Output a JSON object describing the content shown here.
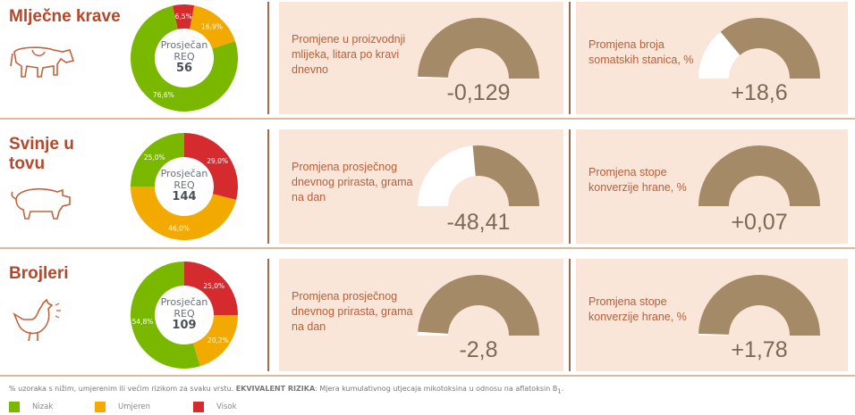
{
  "colors": {
    "nizak": "#7ab800",
    "umjeren": "#f2a900",
    "visok": "#d52b2e",
    "gauge": "#a58a68",
    "panel": "#fae6d8",
    "title": "#b5472a"
  },
  "rows": [
    {
      "name": "Mlječne krave",
      "icon": "cow-icon",
      "center": {
        "line1": "Prosječan",
        "line2": "REQ",
        "value": "56"
      },
      "donut": [
        {
          "level": "visok",
          "pct": 6.5,
          "label": "6,5%"
        },
        {
          "level": "umjeren",
          "pct": 16.9,
          "label": "16,9%"
        },
        {
          "level": "nizak",
          "pct": 76.6,
          "label": "76,6%"
        }
      ],
      "panels": [
        {
          "text": "Promjene u proizvodnji mlijeka, litara po kravi dnevno",
          "value": "-0,129",
          "fill_fraction": 0.99
        },
        {
          "text": "Promjena broja somatskih stanica, %",
          "value": "+18,6",
          "fill_fraction": 0.72
        }
      ]
    },
    {
      "name": "Svinje u tovu",
      "icon": "pig-icon",
      "center": {
        "line1": "Prosječan",
        "line2": "REQ",
        "value": "144"
      },
      "donut": [
        {
          "level": "visok",
          "pct": 29.0,
          "label": "29,0%"
        },
        {
          "level": "umjeren",
          "pct": 46.0,
          "label": "46,0%"
        },
        {
          "level": "nizak",
          "pct": 25.0,
          "label": "25,0%"
        }
      ],
      "panels": [
        {
          "text": "Promjena prosječnog dnevnog prirasta, grama na dan",
          "value": "-48,41",
          "fill_fraction": 0.53
        },
        {
          "text": "Promjena stope konverzije hrane, %",
          "value": "+0,07",
          "fill_fraction": 1.0
        }
      ]
    },
    {
      "name": "Brojleri",
      "icon": "chicken-icon",
      "center": {
        "line1": "Prosječan",
        "line2": "REQ",
        "value": "109"
      },
      "donut": [
        {
          "level": "visok",
          "pct": 25.0,
          "label": "25,0%"
        },
        {
          "level": "umjeren",
          "pct": 20.2,
          "label": "20,2%"
        },
        {
          "level": "nizak",
          "pct": 54.8,
          "label": "54,8%"
        }
      ],
      "panels": [
        {
          "text": "Promjena prosječnog dnevnog prirasta, grama na dan",
          "value": "-2,8",
          "fill_fraction": 0.98
        },
        {
          "text": "Promjena stope konverzije hrane, %",
          "value": "+1,78",
          "fill_fraction": 0.99
        }
      ]
    }
  ],
  "footnote": {
    "pre": "% uzoraka s nižim, umjerenim ili većim rizikom za svaku vrstu. ",
    "bold": "EKVIVALENT RIZIKA",
    "post": ": Mjera kumulativnog utjecaja mikotoksina u odnosu na aflatoksin B",
    "sub": "1",
    "end": "."
  },
  "legend": [
    {
      "level": "nizak",
      "label": "Nizak"
    },
    {
      "level": "umjeren",
      "label": "Umjeren"
    },
    {
      "level": "visok",
      "label": "Visok"
    }
  ]
}
